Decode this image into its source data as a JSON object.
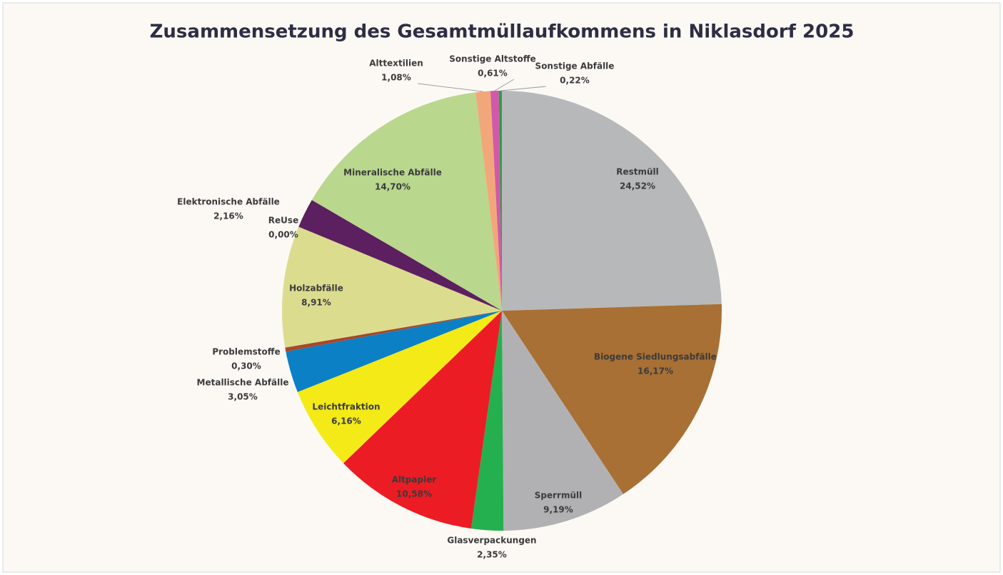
{
  "chart_data": {
    "type": "pie",
    "title": "Zusammensetzung des Gesamtmüllaufkommens in Niklasdorf 2025",
    "categories": [
      "Restmüll",
      "Biogene Siedlungsabfälle",
      "Sperrmüll",
      "Glasverpackungen",
      "Altpapier",
      "Leichtfraktion",
      "Metallische Abfälle",
      "Problemstoffe",
      "Holzabfälle",
      "ReUse",
      "Elektronische Abfälle",
      "Mineralische Abfälle",
      "Alttextilien",
      "Sonstige Altstoffe",
      "Sonstige Abfälle"
    ],
    "values": [
      24.52,
      16.17,
      9.19,
      2.35,
      10.58,
      6.16,
      3.05,
      0.3,
      8.91,
      0.0,
      2.16,
      14.7,
      1.08,
      0.61,
      0.22
    ],
    "value_labels": [
      "24,52%",
      "16,17%",
      "9,19%",
      "2,35%",
      "10,58%",
      "6,16%",
      "3,05%",
      "0,30%",
      "8,91%",
      "0,00%",
      "2,16%",
      "14,70%",
      "1,08%",
      "0,61%",
      "0,22%"
    ],
    "colors": [
      "#b7b8ba",
      "#a87034",
      "#b1b1b3",
      "#25b04f",
      "#ec1c24",
      "#f4ea18",
      "#0b80c5",
      "#a5482a",
      "#dcdc8f",
      "#8a8a8a",
      "#5c1f5f",
      "#bad78e",
      "#f2a77a",
      "#d05aa8",
      "#2e9b4a"
    ]
  }
}
